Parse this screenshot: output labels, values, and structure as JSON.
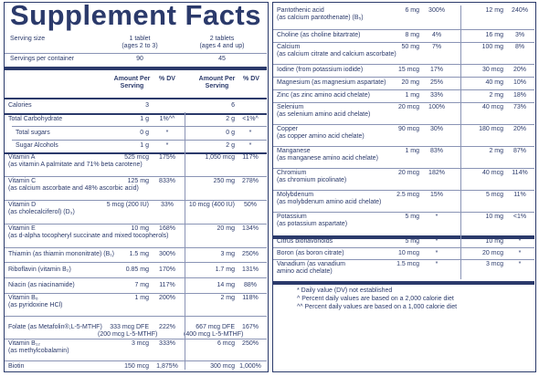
{
  "title": "Supplement Facts",
  "header": {
    "serving_size_label": "Serving size",
    "serving1_line1": "1 tablet",
    "serving1_line2": "(ages 2 to 3)",
    "serving2_line1": "2 tablets",
    "serving2_line2": "(ages 4 and up)",
    "servings_per_container_label": "Servings per container",
    "servings1": "90",
    "servings2": "45",
    "col_amount_per_serving": "Amount Per Serving",
    "col_dv": "% DV"
  },
  "left_rows": [
    {
      "name": "Calories",
      "a1": "3",
      "dv1": "",
      "a2": "6",
      "dv2": ""
    },
    {
      "name": "Total Carbohydrate",
      "a1": "1 g",
      "dv1": "1%^^",
      "a2": "2 g",
      "dv2": "<1%^"
    },
    {
      "name": "Total sugars",
      "a1": "0 g",
      "dv1": "*",
      "a2": "0 g",
      "dv2": "*"
    },
    {
      "name": "Sugar Alcohols",
      "a1": "1 g",
      "dv1": "*",
      "a2": "2 g",
      "dv2": "*"
    },
    {
      "name": "Vitamin A",
      "sub": "(as vitamin A palmitate and 71% beta carotene)",
      "a1": "525 mcg",
      "dv1": "175%",
      "a2": "1,050 mcg",
      "dv2": "117%"
    },
    {
      "name": "Vitamin C",
      "sub": "(as calcium ascorbate and 48% ascorbic acid)",
      "a1": "125 mg",
      "dv1": "833%",
      "a2": "250 mg",
      "dv2": "278%"
    },
    {
      "name": "Vitamin D",
      "sub": "(as cholecalciferol) (D₃)",
      "a1": "5 mcg (200 IU)",
      "dv1": "33%",
      "a2": "10 mcg (400 IU)",
      "dv2": "50%"
    },
    {
      "name": "Vitamin E",
      "sub": "(as d-alpha tocopheryl succinate and mixed tocopherols)",
      "a1": "10 mg",
      "dv1": "168%",
      "a2": "20 mg",
      "dv2": "134%"
    },
    {
      "name": "Thiamin (as thiamin mononitrate) (B₁)",
      "a1": "1.5 mg",
      "dv1": "300%",
      "a2": "3 mg",
      "dv2": "250%"
    },
    {
      "name": "Riboflavin (vitamin B₂)",
      "a1": "0.85 mg",
      "dv1": "170%",
      "a2": "1.7 mg",
      "dv2": "131%"
    },
    {
      "name": "Niacin (as niacinamide)",
      "a1": "7 mg",
      "dv1": "117%",
      "a2": "14 mg",
      "dv2": "88%"
    },
    {
      "name": "Vitamin B₆",
      "sub": "(as pyridoxine HCl)",
      "a1": "1 mg",
      "dv1": "200%",
      "a2": "2 mg",
      "dv2": "118%"
    },
    {
      "name": "Folate (as Metafolin®,L-5-MTHF)",
      "a1": "333 mcg DFE",
      "a1b": "(200 mcg L-5-MTHF)",
      "dv1": "222%",
      "a2": "667 mcg DFE",
      "a2b": "(400 mcg L-5-MTHF)",
      "dv2": "167%"
    },
    {
      "name": "Vitamin B₁₂",
      "sub": "(as methylcobalamin)",
      "a1": "3 mcg",
      "dv1": "333%",
      "a2": "6 mcg",
      "dv2": "250%"
    },
    {
      "name": "Biotin",
      "a1": "150 mcg",
      "dv1": "1,875%",
      "a2": "300 mcg",
      "dv2": "1,000%"
    }
  ],
  "right_rows": [
    {
      "name": "Pantothenic acid",
      "sub": "(as calcium pantothenate) (B₅)",
      "a1": "6 mg",
      "dv1": "300%",
      "a2": "12 mg",
      "dv2": "240%"
    },
    {
      "name": "Choline (as choline bitartrate)",
      "a1": "8 mg",
      "dv1": "4%",
      "a2": "16 mg",
      "dv2": "3%"
    },
    {
      "name": "Calcium",
      "sub": "(as calcium citrate and calcium ascorbate)",
      "a1": "50 mg",
      "dv1": "7%",
      "a2": "100 mg",
      "dv2": "8%"
    },
    {
      "name": "Iodine (from potassium iodide)",
      "a1": "15 mcg",
      "dv1": "17%",
      "a2": "30 mcg",
      "dv2": "20%"
    },
    {
      "name": "Magnesium (as magnesium aspartate)",
      "a1": "20 mg",
      "dv1": "25%",
      "a2": "40 mg",
      "dv2": "10%"
    },
    {
      "name": "Zinc (as zinc amino acid chelate)",
      "a1": "1 mg",
      "dv1": "33%",
      "a2": "2 mg",
      "dv2": "18%"
    },
    {
      "name": "Selenium",
      "sub": "(as selenium amino acid chelate)",
      "a1": "20 mcg",
      "dv1": "100%",
      "a2": "40 mcg",
      "dv2": "73%"
    },
    {
      "name": "Copper",
      "sub": "(as copper amino acid chelate)",
      "a1": "90 mcg",
      "dv1": "30%",
      "a2": "180 mcg",
      "dv2": "20%"
    },
    {
      "name": "Manganese",
      "sub": "(as manganese amino acid chelate)",
      "a1": "1 mg",
      "dv1": "83%",
      "a2": "2 mg",
      "dv2": "87%"
    },
    {
      "name": "Chromium",
      "sub": "(as chromium picolinate)",
      "a1": "20 mcg",
      "dv1": "182%",
      "a2": "40 mcg",
      "dv2": "114%"
    },
    {
      "name": "Molybdenum",
      "sub": "(as molybdenum amino acid chelate)",
      "a1": "2.5 mcg",
      "dv1": "15%",
      "a2": "5 mcg",
      "dv2": "11%"
    },
    {
      "name": "Potassium",
      "sub": "(as potassium aspartate)",
      "a1": "5 mg",
      "dv1": "*",
      "a2": "10 mg",
      "dv2": "<1%"
    },
    {
      "name": "Citrus bioflavonoids",
      "a1": "5 mg",
      "dv1": "*",
      "a2": "10 mg",
      "dv2": "*"
    },
    {
      "name": "Boron (as boron citrate)",
      "a1": "10 mcg",
      "dv1": "*",
      "a2": "20 mcg",
      "dv2": "*"
    },
    {
      "name": "Vanadium (as vanadium",
      "sub": "amino acid chelate)",
      "a1": "1.5 mcg",
      "dv1": "*",
      "a2": "3 mcg",
      "dv2": "*"
    }
  ],
  "footnotes": [
    "* Daily value (DV) not established",
    "^ Percent daily values are based on a 2,000 calorie diet",
    "^^ Percent daily values are based on a 1,000 calorie diet"
  ],
  "colors": {
    "ink": "#2b3a6b",
    "rule": "#8a94b5"
  }
}
